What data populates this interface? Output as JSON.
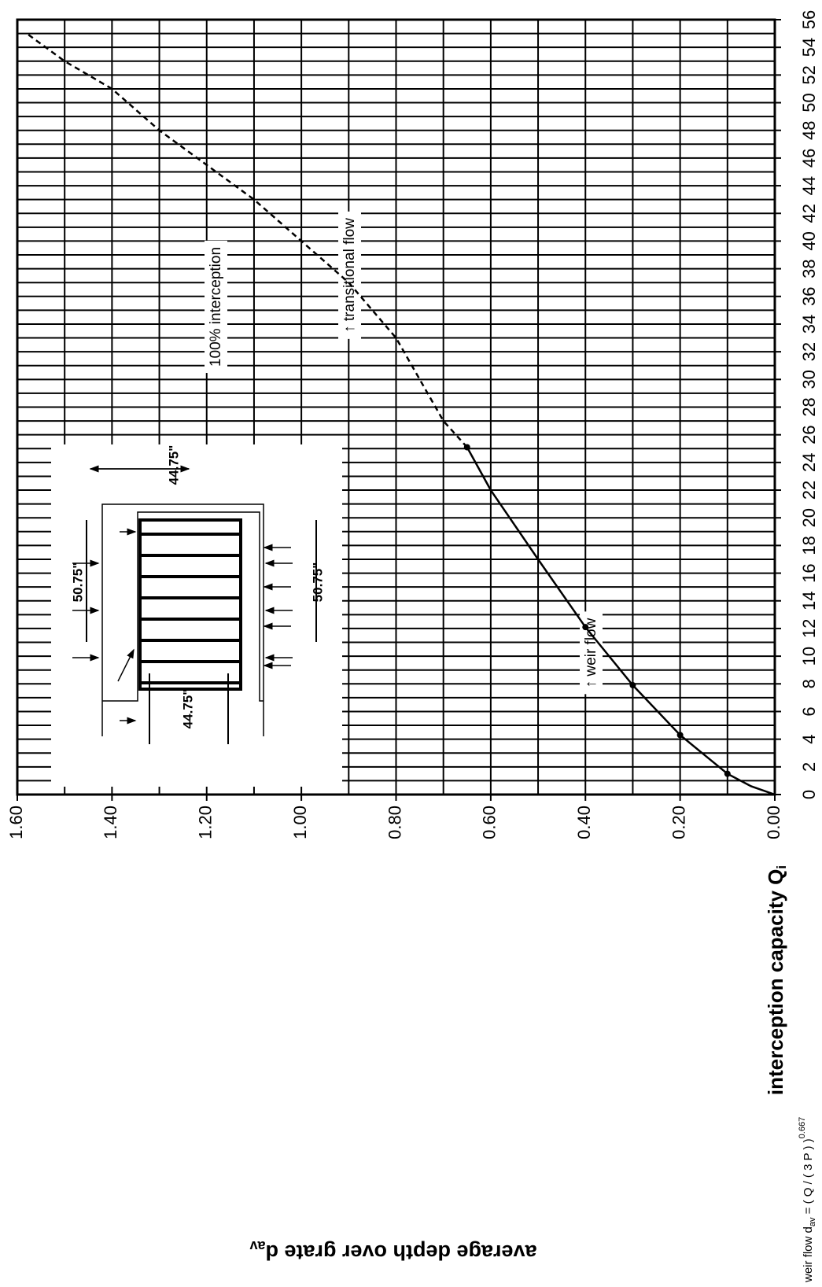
{
  "chart_data": {
    "type": "line",
    "x_label": "interception capacity Q",
    "x_label_sub": "i",
    "y_label": "average depth over grate d",
    "y_label_sub": "av",
    "formula": {
      "text": "weir flow d",
      "sub": "av",
      "rest": " = ( Q / ( 3 P ) )",
      "sup": "0.667"
    },
    "xlim": [
      0,
      56
    ],
    "ylim": [
      0,
      1.6
    ],
    "xticks": [
      0,
      2,
      4,
      6,
      8,
      10,
      12,
      14,
      16,
      18,
      20,
      22,
      24,
      26,
      28,
      30,
      32,
      34,
      36,
      38,
      40,
      42,
      44,
      46,
      48,
      50,
      52,
      54,
      56
    ],
    "yticks": [
      {
        "value": 0,
        "label": "0.00"
      },
      {
        "value": 0.2,
        "label": "0.20"
      },
      {
        "value": 0.4,
        "label": "0.40"
      },
      {
        "value": 0.6,
        "label": "0.60"
      },
      {
        "value": 0.8,
        "label": "0.80"
      },
      {
        "value": 1.0,
        "label": "1.00"
      },
      {
        "value": 1.2,
        "label": "1.20"
      },
      {
        "value": 1.4,
        "label": "1.40"
      },
      {
        "value": 1.6,
        "label": "1.60"
      }
    ],
    "xgrid": [
      0,
      1,
      2,
      3,
      4,
      5,
      6,
      7,
      8,
      9,
      10,
      11,
      12,
      13,
      14,
      15,
      16,
      17,
      18,
      19,
      20,
      21,
      22,
      23,
      24,
      25,
      26,
      27,
      28,
      29,
      30,
      31,
      32,
      33,
      34,
      35,
      36,
      37,
      38,
      39,
      40,
      41,
      42,
      43,
      44,
      45,
      46,
      47,
      48,
      49,
      50,
      51,
      52,
      53,
      54,
      55,
      56
    ],
    "ygrid": [
      0,
      0.1,
      0.2,
      0.3,
      0.4,
      0.5,
      0.6,
      0.7,
      0.8,
      0.9,
      1.0,
      1.1,
      1.2,
      1.3,
      1.4,
      1.5,
      1.6
    ],
    "series": [
      {
        "style": "solid",
        "color": "#000000",
        "x": [
          0,
          0.6,
          1.5,
          4.3,
          7.9,
          12.1,
          17,
          22,
          25.1
        ],
        "values": [
          0,
          0.05,
          0.1,
          0.2,
          0.3,
          0.4,
          0.5,
          0.6,
          0.65
        ]
      },
      {
        "style": "dashed",
        "color": "#000000",
        "x": [
          25.1,
          27,
          30,
          33,
          37,
          40,
          43,
          45.5,
          48,
          51,
          53,
          55
        ],
        "values": [
          0.65,
          0.7,
          0.75,
          0.8,
          0.9,
          1.0,
          1.1,
          1.2,
          1.3,
          1.4,
          1.5,
          1.58
        ]
      }
    ],
    "markers": {
      "x": [
        1.5,
        4.3,
        7.9,
        12.1,
        25.1
      ],
      "values": [
        0.1,
        0.2,
        0.3,
        0.4,
        0.65
      ]
    },
    "annotations": [
      "100% interception",
      "↑ weir flow",
      "↑ transitional flow"
    ],
    "inset_labels": [
      "50.75\"",
      "50.75\"",
      "44.75\"",
      "44.75\""
    ]
  }
}
